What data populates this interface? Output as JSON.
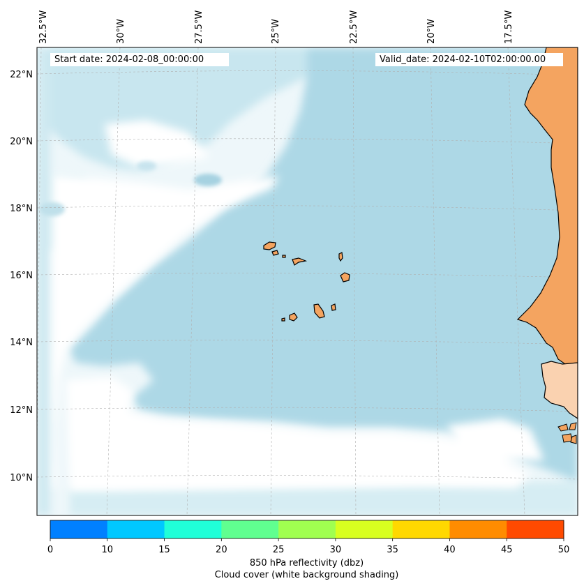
{
  "header": {
    "start_date": "Start date: 2024-02-08_00:00:00",
    "valid_date": "Valid_date: 2024-02-10T02:00:00.00"
  },
  "map": {
    "lon_labels": [
      "32.5°W",
      "30°W",
      "27.5°W",
      "25°W",
      "22.5°W",
      "20°W",
      "17.5°W"
    ],
    "lat_labels": [
      "22°N",
      "20°N",
      "18°N",
      "16°N",
      "14°N",
      "12°N",
      "10°N"
    ],
    "colors": {
      "ocean_cloud": "#add8e6",
      "clear_sky": "#ffffff",
      "land": "#f4a460",
      "land_light": "#fad2b0",
      "coast": "#000000",
      "grid": "#b0b0b0"
    }
  },
  "colorbar": {
    "ticks": [
      "0",
      "10",
      "15",
      "20",
      "25",
      "30",
      "35",
      "40",
      "45",
      "50"
    ],
    "colors": [
      "#0080ff",
      "#00c8ff",
      "#20ffd8",
      "#60ff90",
      "#a0ff50",
      "#d8ff20",
      "#ffd800",
      "#ff8c00",
      "#ff4a00"
    ],
    "label": "850 hPa reflectivity (dbz)",
    "sublabel": "Cloud cover (white background shading)"
  }
}
